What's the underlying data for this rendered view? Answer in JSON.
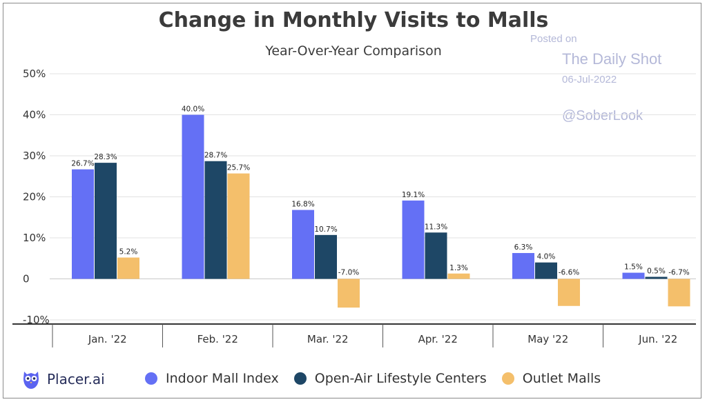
{
  "chart_data": {
    "type": "bar",
    "title": "Change in Monthly Visits to Malls",
    "subtitle": "Year-Over-Year Comparison",
    "categories": [
      "Jan. '22",
      "Feb. '22",
      "Mar. '22",
      "Apr. '22",
      "May '22",
      "Jun. '22"
    ],
    "series": [
      {
        "name": "Indoor Mall Index",
        "color": "#6470f5",
        "values": [
          26.7,
          40.0,
          16.8,
          19.1,
          6.3,
          1.5
        ],
        "labels": [
          "26.7%",
          "40.0%",
          "16.8%",
          "19.1%",
          "6.3%",
          "1.5%"
        ]
      },
      {
        "name": "Open-Air Lifestyle Centers",
        "color": "#1e4766",
        "values": [
          28.3,
          28.7,
          10.7,
          11.3,
          4.0,
          0.5
        ],
        "labels": [
          "28.3%",
          "28.7%",
          "10.7%",
          "11.3%",
          "4.0%",
          "0.5%"
        ]
      },
      {
        "name": "Outlet Malls",
        "color": "#f4bf6b",
        "values": [
          5.2,
          25.7,
          -7.0,
          1.3,
          -6.6,
          -6.7
        ],
        "labels": [
          "5.2%",
          "25.7%",
          "-7.0%",
          "1.3%",
          "-6.6%",
          "-6.7%"
        ]
      }
    ],
    "yticks": [
      50,
      40,
      30,
      20,
      10,
      0,
      -10
    ],
    "ytick_labels": [
      "50%",
      "40%",
      "30%",
      "20%",
      "10%",
      "0",
      "-10%"
    ],
    "ylim": [
      -10,
      50
    ],
    "grid": true,
    "legend_position": "bottom"
  },
  "watermark": {
    "posted": "Posted on",
    "source": "The Daily Shot",
    "date": "06-Jul-2022",
    "handle": "@SoberLook"
  },
  "brand": {
    "name": "Placer.ai",
    "icon": "owl-logo-icon"
  },
  "colors": {
    "title": "#3b3b3b",
    "grid": "#dddddd",
    "axis": "#333333",
    "watermark": "#b4b8d8"
  }
}
